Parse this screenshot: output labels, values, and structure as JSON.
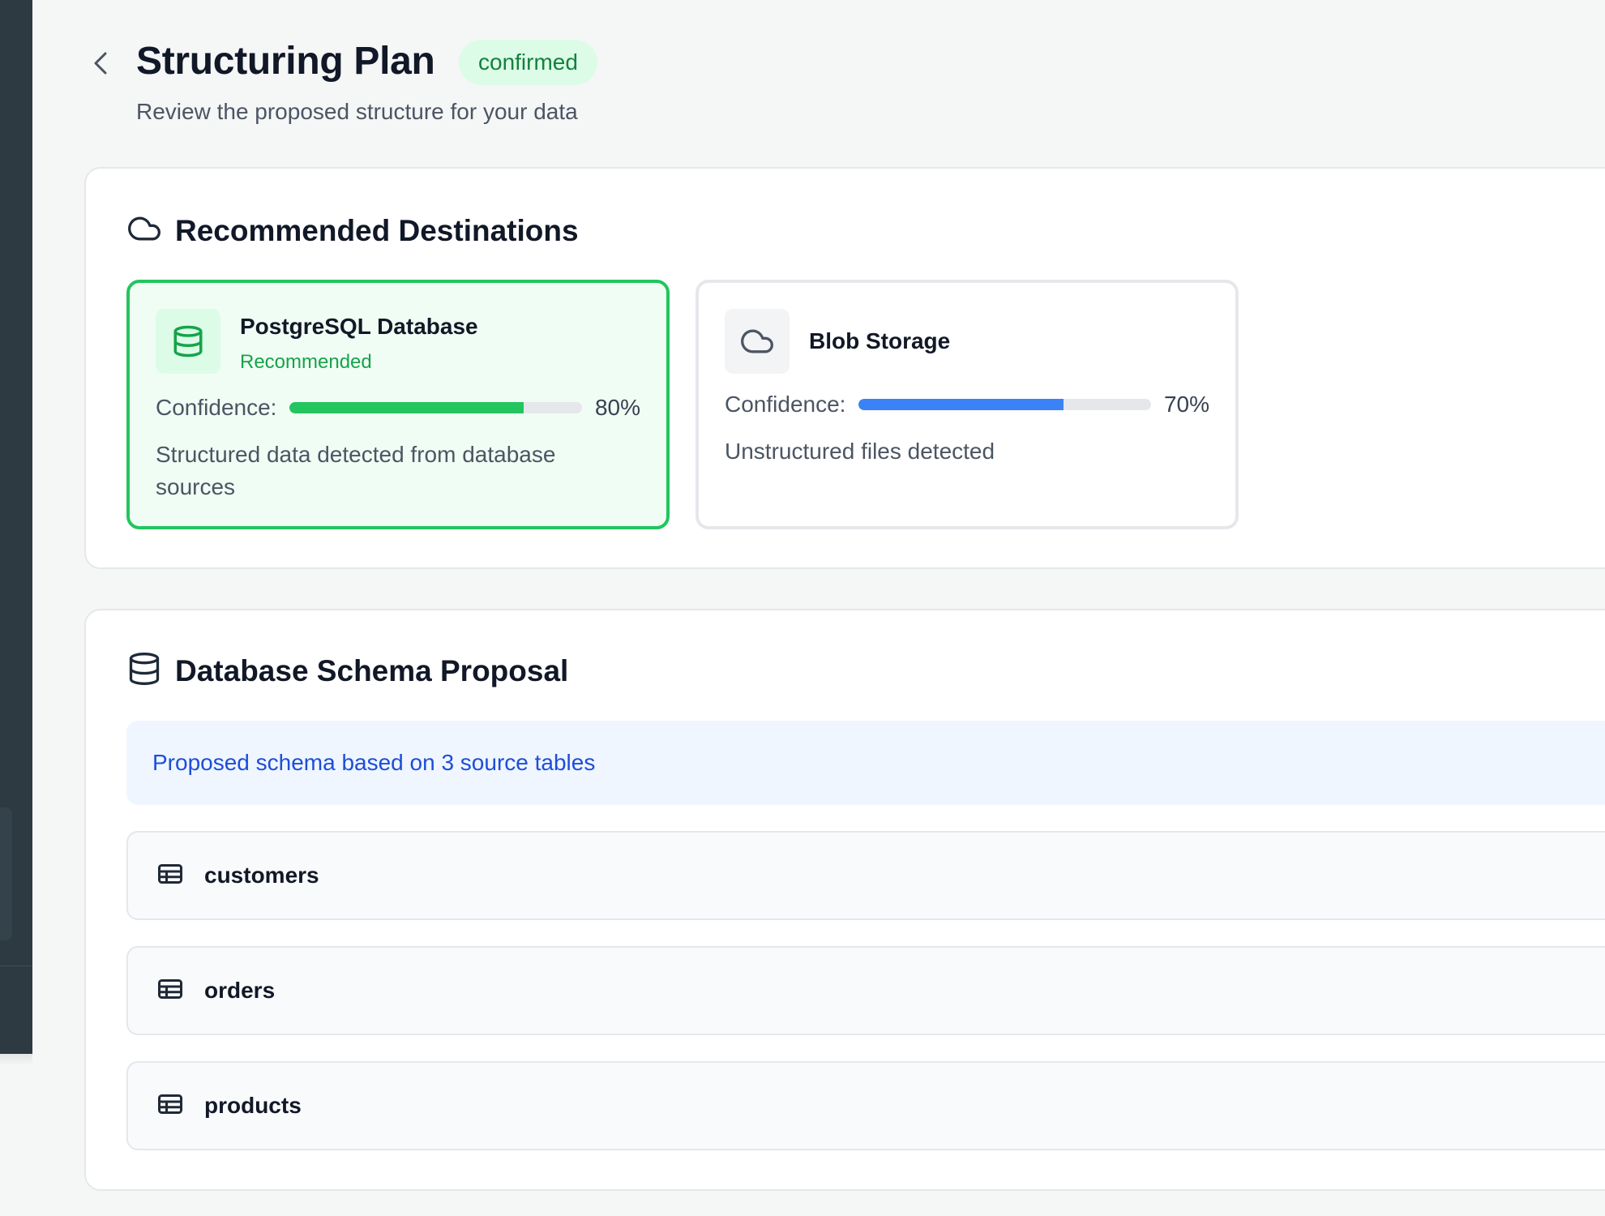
{
  "header": {
    "title": "Structuring Plan",
    "status": "confirmed",
    "subtitle": "Review the proposed structure for your data"
  },
  "destinations": {
    "title": "Recommended Destinations",
    "title_icon": "cloud-icon",
    "items": [
      {
        "name": "PostgreSQL Database",
        "tag": "Recommended",
        "icon": "database-icon",
        "confidence_label": "Confidence:",
        "confidence": 80,
        "confidence_text": "80%",
        "description": "Structured data detected from database sources",
        "accent": "#22c55e"
      },
      {
        "name": "Blob Storage",
        "tag": "",
        "icon": "cloud-icon",
        "confidence_label": "Confidence:",
        "confidence": 70,
        "confidence_text": "70%",
        "description": "Unstructured files detected",
        "accent": "#3b82f6"
      }
    ]
  },
  "schema": {
    "title": "Database Schema Proposal",
    "title_icon": "database-icon",
    "info": "Proposed schema based on 3 source tables",
    "tables": [
      {
        "name": "customers",
        "icon": "table-icon"
      },
      {
        "name": "orders",
        "icon": "table-icon"
      },
      {
        "name": "products",
        "icon": "table-icon"
      }
    ]
  },
  "colors": {
    "sidebar": "#2d3a42",
    "success": "#22c55e",
    "info": "#1d4ed8",
    "progress_blue": "#3b82f6"
  }
}
